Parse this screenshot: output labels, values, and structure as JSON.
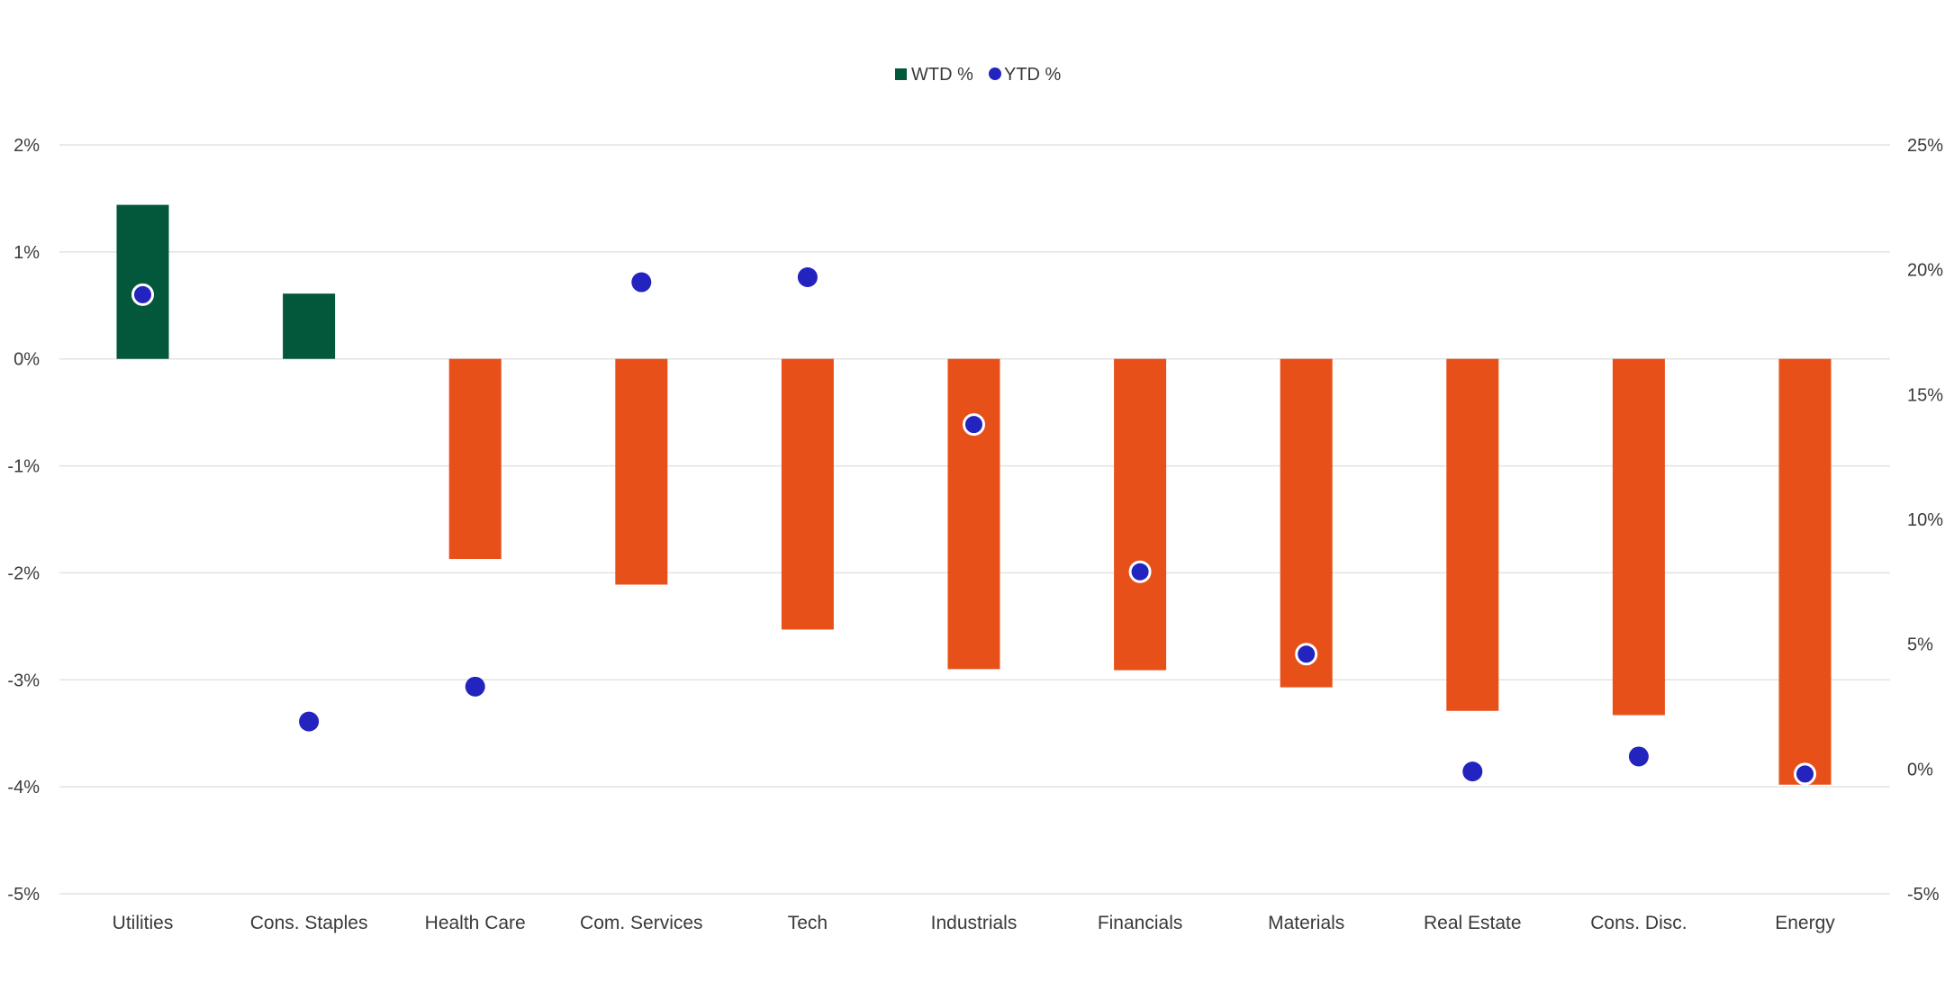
{
  "chart_data": {
    "type": "bar",
    "title": "",
    "categories": [
      "Utilities",
      "Cons. Staples",
      "Health Care",
      "Com. Services",
      "Tech",
      "Industrials",
      "Financials",
      "Materials",
      "Real Estate",
      "Cons. Disc.",
      "Energy"
    ],
    "series": [
      {
        "name": "WTD %",
        "kind": "bar",
        "axis": "left",
        "values": [
          1.44,
          0.61,
          -1.87,
          -2.11,
          -2.53,
          -2.9,
          -2.91,
          -3.07,
          -3.29,
          -3.33,
          -3.98
        ]
      },
      {
        "name": "YTD %",
        "kind": "scatter",
        "axis": "right",
        "values": [
          19.0,
          1.9,
          3.3,
          19.5,
          19.7,
          13.8,
          7.9,
          4.6,
          -0.1,
          0.5,
          -0.2
        ]
      }
    ],
    "y_left": {
      "range": [
        -5,
        2
      ],
      "ticks": [
        2,
        1,
        0,
        -1,
        -2,
        -3,
        -4,
        -5
      ],
      "tick_labels": [
        "2%",
        "1%",
        "0%",
        "-1%",
        "-2%",
        "-3%",
        "-4%",
        "-5%"
      ]
    },
    "y_right": {
      "range": [
        -5,
        25
      ],
      "ticks": [
        25,
        20,
        15,
        10,
        5,
        0,
        -5
      ],
      "tick_labels": [
        "25%",
        "20%",
        "15%",
        "10%",
        "5%",
        "0%",
        "-5%"
      ]
    },
    "grid": true,
    "legend": {
      "placement": "top-center",
      "items": [
        "WTD %",
        "YTD %"
      ]
    },
    "colors": {
      "positive": "#03573A",
      "negative": "#E8501A",
      "dot": "#2323BF",
      "grid": "#E3E3E3"
    }
  }
}
